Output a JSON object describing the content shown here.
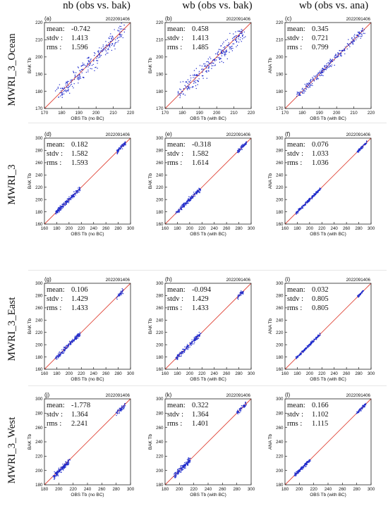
{
  "column_titles": [
    "nb (obs vs. bak)",
    "wb (obs vs. bak)",
    "wb (obs vs. ana)"
  ],
  "row_titles": [
    "MWRI_3_Ocean",
    "MWRI_3",
    "MWRI_3_East",
    "MWRI_3_West"
  ],
  "date_stamp": "2022091406",
  "stat_labels": {
    "mean": "mean:",
    "stdv": "stdv :",
    "rms": "rms  :"
  },
  "colors": {
    "points": "#1f2ccc",
    "diagonal": "#e0463a",
    "axes": "#222222"
  },
  "chart_data": [
    {
      "type": "scatter",
      "panel": "(a)",
      "xlabel": "OBS Tb (no BC)",
      "ylabel": "BAK Tb",
      "xlim": [
        170,
        220
      ],
      "ylim": [
        170,
        220
      ],
      "xticks": [
        170,
        180,
        190,
        200,
        210,
        220
      ],
      "yticks": [
        170,
        180,
        190,
        200,
        210,
        220
      ],
      "stats": {
        "mean": "-0.742",
        "stdv": "1.413",
        "rms": "1.596"
      },
      "clusters": [
        {
          "x": [
            178,
            216
          ],
          "y": [
            178,
            215
          ],
          "spread": 2.5,
          "n": 260
        }
      ]
    },
    {
      "type": "scatter",
      "panel": "(b)",
      "xlabel": "OBS Tb (with BC)",
      "ylabel": "BAK Tb",
      "xlim": [
        170,
        220
      ],
      "ylim": [
        170,
        220
      ],
      "xticks": [
        170,
        180,
        190,
        200,
        210,
        220
      ],
      "yticks": [
        170,
        180,
        190,
        200,
        210,
        220
      ],
      "stats": {
        "mean": "0.458",
        "stdv": "1.413",
        "rms": "1.485"
      },
      "clusters": [
        {
          "x": [
            178,
            216
          ],
          "y": [
            178,
            215
          ],
          "spread": 2.5,
          "n": 260
        }
      ]
    },
    {
      "type": "scatter",
      "panel": "(c)",
      "xlabel": "OBS Tb (with BC)",
      "ylabel": "ANA Tb",
      "xlim": [
        170,
        220
      ],
      "ylim": [
        170,
        220
      ],
      "xticks": [
        170,
        180,
        190,
        200,
        210,
        220
      ],
      "yticks": [
        170,
        180,
        190,
        200,
        210,
        220
      ],
      "stats": {
        "mean": "0.345",
        "stdv": "0.721",
        "rms": "0.799"
      },
      "clusters": [
        {
          "x": [
            177,
            216
          ],
          "y": [
            177,
            216
          ],
          "spread": 1.2,
          "n": 260
        }
      ]
    },
    {
      "type": "scatter",
      "panel": "(d)",
      "xlabel": "OBS Tb (no BC)",
      "ylabel": "BAK Tb",
      "xlim": [
        160,
        300
      ],
      "ylim": [
        160,
        300
      ],
      "xticks": [
        160,
        180,
        200,
        220,
        240,
        260,
        280,
        300
      ],
      "yticks": [
        160,
        180,
        200,
        220,
        240,
        260,
        280,
        300
      ],
      "stats": {
        "mean": "0.182",
        "stdv": "1.582",
        "rms": "1.593"
      },
      "clusters": [
        {
          "x": [
            178,
            218
          ],
          "y": [
            178,
            218
          ],
          "spread": 2,
          "n": 200
        },
        {
          "x": [
            278,
            293
          ],
          "y": [
            278,
            293
          ],
          "spread": 1.8,
          "n": 80
        }
      ]
    },
    {
      "type": "scatter",
      "panel": "(e)",
      "xlabel": "OBS Tb (with BC)",
      "ylabel": "BAK Tb",
      "xlim": [
        160,
        300
      ],
      "ylim": [
        160,
        300
      ],
      "xticks": [
        160,
        180,
        200,
        220,
        240,
        260,
        280,
        300
      ],
      "yticks": [
        160,
        180,
        200,
        220,
        240,
        260,
        280,
        300
      ],
      "stats": {
        "mean": "-0.318",
        "stdv": "1.582",
        "rms": "1.614"
      },
      "clusters": [
        {
          "x": [
            178,
            218
          ],
          "y": [
            178,
            218
          ],
          "spread": 2,
          "n": 200
        },
        {
          "x": [
            278,
            293
          ],
          "y": [
            278,
            293
          ],
          "spread": 1.8,
          "n": 80
        }
      ]
    },
    {
      "type": "scatter",
      "panel": "(f)",
      "xlabel": "OBS Tb (with BC)",
      "ylabel": "ANA Tb",
      "xlim": [
        160,
        300
      ],
      "ylim": [
        160,
        300
      ],
      "xticks": [
        160,
        180,
        200,
        220,
        240,
        260,
        280,
        300
      ],
      "yticks": [
        160,
        180,
        200,
        220,
        240,
        260,
        280,
        300
      ],
      "stats": {
        "mean": "0.076",
        "stdv": "1.033",
        "rms": "1.036"
      },
      "clusters": [
        {
          "x": [
            178,
            218
          ],
          "y": [
            178,
            218
          ],
          "spread": 1.2,
          "n": 200
        },
        {
          "x": [
            278,
            293
          ],
          "y": [
            278,
            293
          ],
          "spread": 1.2,
          "n": 80
        }
      ]
    },
    {
      "type": "scatter",
      "panel": "(g)",
      "xlabel": "OBS Tb (no BC)",
      "ylabel": "BAK Tb",
      "xlim": [
        160,
        300
      ],
      "ylim": [
        160,
        300
      ],
      "xticks": [
        160,
        180,
        200,
        220,
        240,
        260,
        280,
        300
      ],
      "yticks": [
        160,
        180,
        200,
        220,
        240,
        260,
        280,
        300
      ],
      "stats": {
        "mean": "0.106",
        "stdv": "1.429",
        "rms": "1.433"
      },
      "clusters": [
        {
          "x": [
            178,
            218
          ],
          "y": [
            178,
            218
          ],
          "spread": 2,
          "n": 180
        },
        {
          "x": [
            278,
            288
          ],
          "y": [
            278,
            288
          ],
          "spread": 1.8,
          "n": 40
        }
      ]
    },
    {
      "type": "scatter",
      "panel": "(h)",
      "xlabel": "OBS Tb (with BC)",
      "ylabel": "BAK Tb",
      "xlim": [
        160,
        300
      ],
      "ylim": [
        160,
        300
      ],
      "xticks": [
        160,
        180,
        200,
        220,
        240,
        260,
        280,
        300
      ],
      "yticks": [
        160,
        180,
        200,
        220,
        240,
        260,
        280,
        300
      ],
      "stats": {
        "mean": "-0.094",
        "stdv": "1.429",
        "rms": "1.433"
      },
      "clusters": [
        {
          "x": [
            178,
            218
          ],
          "y": [
            178,
            218
          ],
          "spread": 2,
          "n": 180
        },
        {
          "x": [
            278,
            288
          ],
          "y": [
            278,
            288
          ],
          "spread": 1.8,
          "n": 40
        }
      ]
    },
    {
      "type": "scatter",
      "panel": "(i)",
      "xlabel": "OBS Tb (with BC)",
      "ylabel": "ANA Tb",
      "xlim": [
        160,
        300
      ],
      "ylim": [
        160,
        300
      ],
      "xticks": [
        160,
        180,
        200,
        220,
        240,
        260,
        280,
        300
      ],
      "yticks": [
        160,
        180,
        200,
        220,
        240,
        260,
        280,
        300
      ],
      "stats": {
        "mean": "0.032",
        "stdv": "0.805",
        "rms": "0.805"
      },
      "clusters": [
        {
          "x": [
            178,
            218
          ],
          "y": [
            178,
            218
          ],
          "spread": 1.1,
          "n": 180
        },
        {
          "x": [
            278,
            288
          ],
          "y": [
            278,
            288
          ],
          "spread": 1.1,
          "n": 40
        }
      ]
    },
    {
      "type": "scatter",
      "panel": "(j)",
      "xlabel": "OBS Tb (no BC)",
      "ylabel": "BAK Tb",
      "xlim": [
        180,
        300
      ],
      "ylim": [
        180,
        300
      ],
      "xticks": [
        180,
        200,
        220,
        240,
        260,
        280,
        300
      ],
      "yticks": [
        180,
        200,
        220,
        240,
        260,
        280,
        300
      ],
      "stats": {
        "mean": "-1.778",
        "stdv": "1.364",
        "rms": "2.241"
      },
      "clusters": [
        {
          "x": [
            193,
            215
          ],
          "y": [
            192,
            213
          ],
          "spread": 2,
          "n": 160
        },
        {
          "x": [
            280,
            293
          ],
          "y": [
            279,
            291
          ],
          "spread": 1.8,
          "n": 60
        }
      ]
    },
    {
      "type": "scatter",
      "panel": "(k)",
      "xlabel": "OBS Tb (with BC)",
      "ylabel": "BAK Tb",
      "xlim": [
        180,
        300
      ],
      "ylim": [
        180,
        300
      ],
      "xticks": [
        180,
        200,
        220,
        240,
        260,
        280,
        300
      ],
      "yticks": [
        180,
        200,
        220,
        240,
        260,
        280,
        300
      ],
      "stats": {
        "mean": "0.322",
        "stdv": "1.364",
        "rms": "1.401"
      },
      "clusters": [
        {
          "x": [
            193,
            215
          ],
          "y": [
            193,
            215
          ],
          "spread": 2,
          "n": 160
        },
        {
          "x": [
            280,
            293
          ],
          "y": [
            280,
            293
          ],
          "spread": 1.8,
          "n": 60
        }
      ]
    },
    {
      "type": "scatter",
      "panel": "(l)",
      "xlabel": "OBS Tb (with BC)",
      "ylabel": "ANA Tb",
      "xlim": [
        180,
        300
      ],
      "ylim": [
        180,
        300
      ],
      "xticks": [
        180,
        200,
        220,
        240,
        260,
        280,
        300
      ],
      "yticks": [
        180,
        200,
        220,
        240,
        260,
        280,
        300
      ],
      "stats": {
        "mean": "0.166",
        "stdv": "1.102",
        "rms": "1.115"
      },
      "clusters": [
        {
          "x": [
            193,
            215
          ],
          "y": [
            193,
            215
          ],
          "spread": 1.2,
          "n": 160
        },
        {
          "x": [
            280,
            293
          ],
          "y": [
            280,
            293
          ],
          "spread": 1.2,
          "n": 60
        }
      ]
    }
  ]
}
